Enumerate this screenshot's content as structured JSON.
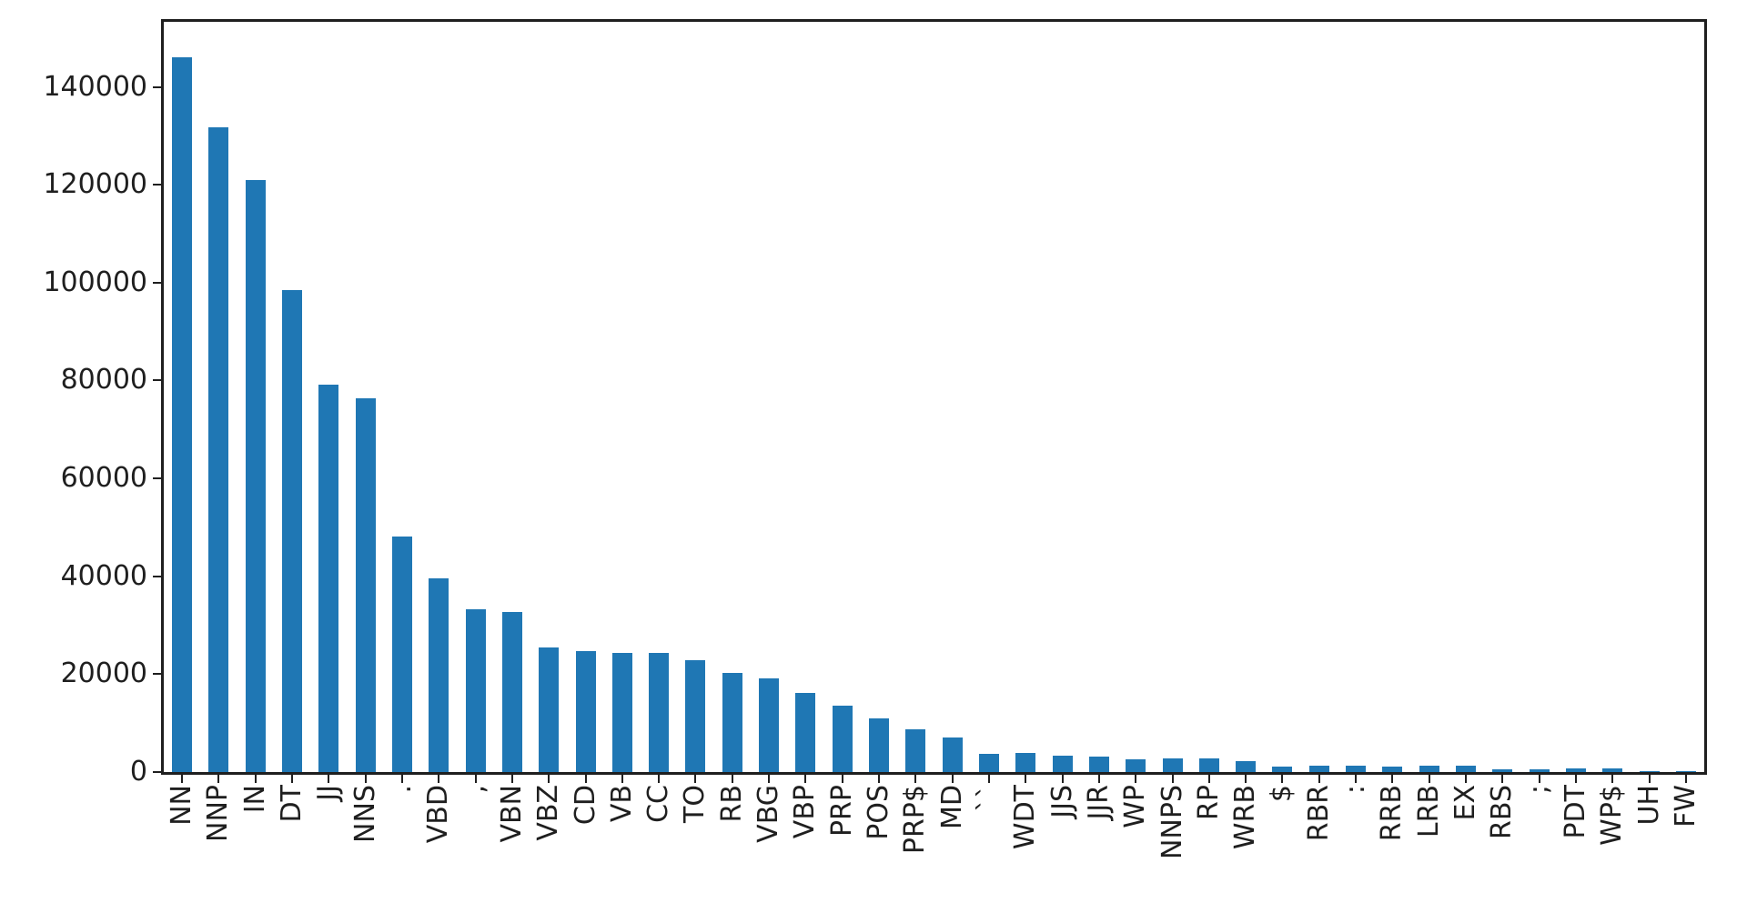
{
  "figure": {
    "background_color": "#ffffff",
    "bar_color": "#1f77b4",
    "axis_color": "#1f1f1f",
    "text_color": "#1f1f1f"
  },
  "chart_data": {
    "type": "bar",
    "title": "",
    "xlabel": "",
    "ylabel": "",
    "grid": false,
    "legend_position": "none",
    "categories": [
      "NN",
      "NNP",
      "IN",
      "DT",
      "JJ",
      "NNS",
      ".",
      "VBD",
      ",",
      "VBN",
      "VBZ",
      "CD",
      "VB",
      "CC",
      "TO",
      "RB",
      "VBG",
      "VBP",
      "PRP",
      "POS",
      "PRP$",
      "MD",
      "``",
      "WDT",
      "JJS",
      "JJR",
      "WP",
      "NNPS",
      "RP",
      "WRB",
      "$",
      "RBR",
      ":",
      "RRB",
      "LRB",
      "EX",
      "RBS",
      ";",
      "PDT",
      "WP$",
      "UH",
      "FW"
    ],
    "values": [
      146000,
      131700,
      121000,
      98500,
      79100,
      76400,
      48100,
      39500,
      33300,
      32700,
      25400,
      24700,
      24400,
      24300,
      22900,
      20300,
      19100,
      16100,
      13600,
      11000,
      8800,
      7100,
      3800,
      3900,
      3300,
      3200,
      2600,
      2800,
      2800,
      2200,
      1100,
      1300,
      1300,
      1100,
      1300,
      1300,
      600,
      550,
      700,
      700,
      150,
      100
    ],
    "ylim": [
      0,
      153300
    ],
    "yticks": [
      0,
      20000,
      40000,
      60000,
      80000,
      100000,
      120000,
      140000
    ],
    "ytick_labels": [
      "0",
      "20000",
      "40000",
      "60000",
      "80000",
      "100000",
      "120000",
      "140000"
    ]
  }
}
